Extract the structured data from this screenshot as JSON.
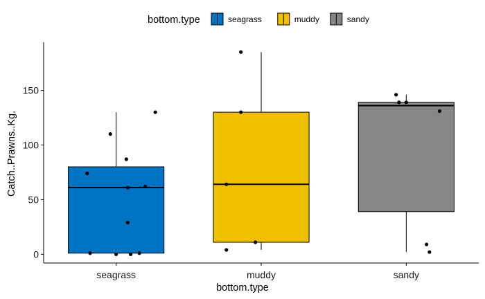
{
  "chart_data": {
    "type": "boxplot",
    "xlabel": "bottom.type",
    "ylabel": "Catch..Prawns..Kg.",
    "ylim": [
      -8,
      194
    ],
    "yticks": [
      0,
      50,
      100,
      150
    ],
    "categories": [
      "seagrass",
      "muddy",
      "sandy"
    ],
    "legend": {
      "title": "bottom.type",
      "position": "top",
      "entries": [
        "seagrass",
        "muddy",
        "sandy"
      ]
    },
    "colors": {
      "seagrass": "#0073C2",
      "muddy": "#EFC000",
      "sandy": "#868686"
    },
    "boxes": [
      {
        "category": "seagrass",
        "min": 0,
        "q1": 1,
        "median": 61,
        "q3": 80,
        "max": 130
      },
      {
        "category": "muddy",
        "min": 4,
        "q1": 11,
        "median": 64,
        "q3": 130,
        "max": 185
      },
      {
        "category": "sandy",
        "min": 2,
        "q1": 39,
        "median": 136,
        "q3": 139,
        "max": 146
      }
    ],
    "points": [
      {
        "category": "seagrass",
        "jitter": -0.2,
        "y": 74
      },
      {
        "category": "seagrass",
        "jitter": -0.04,
        "y": 110
      },
      {
        "category": "seagrass",
        "jitter": 0.07,
        "y": 87
      },
      {
        "category": "seagrass",
        "jitter": 0.27,
        "y": 130
      },
      {
        "category": "seagrass",
        "jitter": 0.08,
        "y": 61
      },
      {
        "category": "seagrass",
        "jitter": 0.2,
        "y": 62
      },
      {
        "category": "seagrass",
        "jitter": 0.08,
        "y": 29
      },
      {
        "category": "seagrass",
        "jitter": -0.18,
        "y": 1
      },
      {
        "category": "seagrass",
        "jitter": 0.0,
        "y": 0
      },
      {
        "category": "seagrass",
        "jitter": 0.1,
        "y": 0
      },
      {
        "category": "seagrass",
        "jitter": 0.16,
        "y": 1
      },
      {
        "category": "muddy",
        "jitter": -0.14,
        "y": 185
      },
      {
        "category": "muddy",
        "jitter": -0.14,
        "y": 130
      },
      {
        "category": "muddy",
        "jitter": -0.24,
        "y": 64
      },
      {
        "category": "muddy",
        "jitter": -0.24,
        "y": 4
      },
      {
        "category": "muddy",
        "jitter": -0.04,
        "y": 11
      },
      {
        "category": "sandy",
        "jitter": -0.07,
        "y": 146
      },
      {
        "category": "sandy",
        "jitter": -0.05,
        "y": 139
      },
      {
        "category": "sandy",
        "jitter": 0.0,
        "y": 139
      },
      {
        "category": "sandy",
        "jitter": 0.23,
        "y": 131
      },
      {
        "category": "sandy",
        "jitter": 0.14,
        "y": 9
      },
      {
        "category": "sandy",
        "jitter": 0.16,
        "y": 2
      }
    ]
  }
}
